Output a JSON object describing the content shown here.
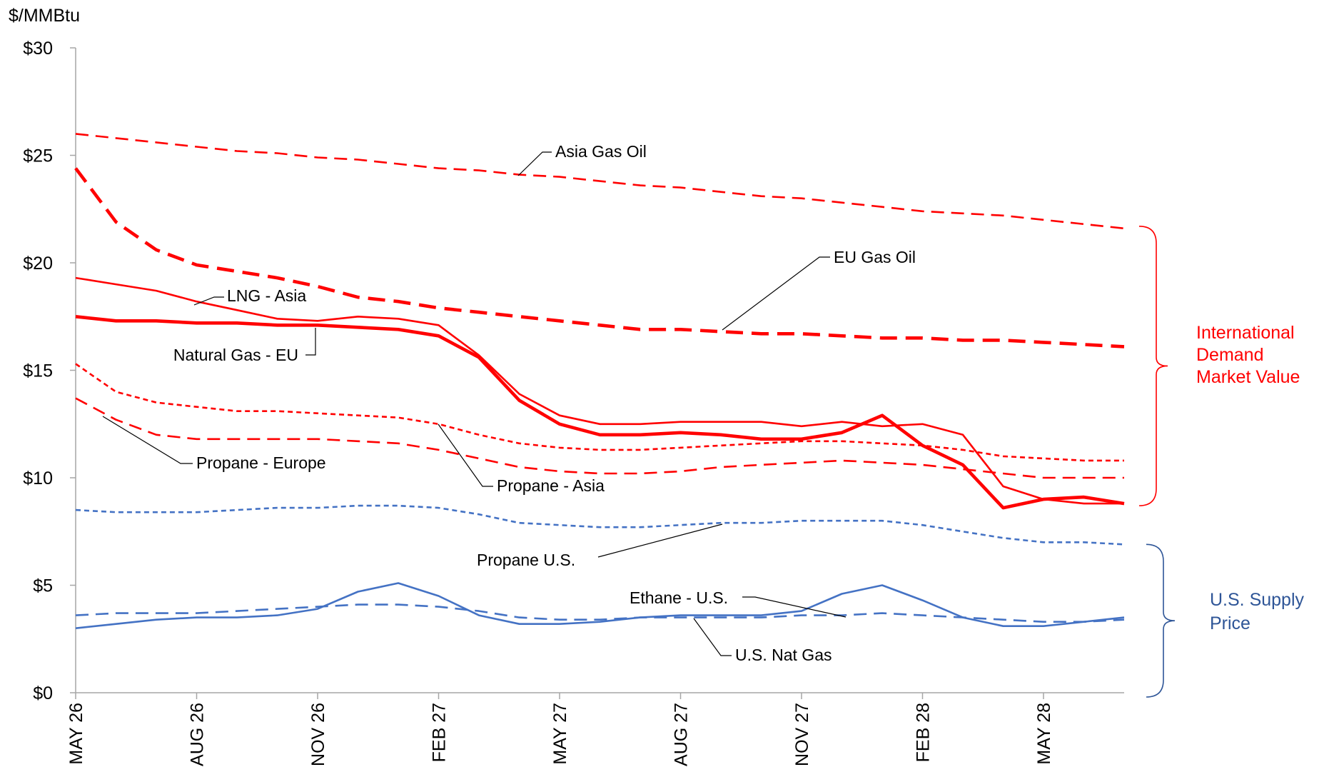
{
  "chart_data": {
    "type": "line",
    "ylabel": "$/MMBtu",
    "ylim": [
      0,
      30
    ],
    "y_ticks": [
      "$0",
      "$5",
      "$10",
      "$15",
      "$20",
      "$25",
      "$30"
    ],
    "y_tick_values": [
      0,
      5,
      10,
      15,
      20,
      25,
      30
    ],
    "x": [
      "MAY 26",
      "JUN 26",
      "JUL 26",
      "AUG 26",
      "SEP 26",
      "OCT 26",
      "NOV 26",
      "DEC 26",
      "JAN 27",
      "FEB 27",
      "MAR 27",
      "APR 27",
      "MAY 27",
      "JUN 27",
      "JUL 27",
      "AUG 27",
      "SEP 27",
      "OCT 27",
      "NOV 27",
      "DEC 27",
      "JAN 28",
      "FEB 28",
      "MAR 28",
      "APR 28",
      "MAY 28",
      "JUN 28",
      "JUL 28"
    ],
    "x_tick_labels": [
      "MAY 26",
      "AUG 26",
      "NOV 26",
      "FEB 27",
      "MAY 27",
      "AUG 27",
      "NOV 27",
      "FEB 28",
      "MAY 28"
    ],
    "x_tick_indices": [
      0,
      3,
      6,
      9,
      12,
      15,
      18,
      21,
      24
    ],
    "grid": false,
    "series": [
      {
        "name": "Asia Gas Oil",
        "color": "#ff0000",
        "style": "dashed",
        "width": "medium",
        "values": [
          26.0,
          25.8,
          25.6,
          25.4,
          25.2,
          25.1,
          24.9,
          24.8,
          24.6,
          24.4,
          24.3,
          24.1,
          24.0,
          23.8,
          23.6,
          23.5,
          23.3,
          23.1,
          23.0,
          22.8,
          22.6,
          22.4,
          22.3,
          22.2,
          22.0,
          21.8,
          21.6
        ]
      },
      {
        "name": "EU Gas Oil",
        "color": "#ff0000",
        "style": "dashed",
        "width": "thick",
        "values": [
          24.4,
          21.9,
          20.6,
          19.9,
          19.6,
          19.3,
          18.9,
          18.4,
          18.2,
          17.9,
          17.7,
          17.5,
          17.3,
          17.1,
          16.9,
          16.9,
          16.8,
          16.7,
          16.7,
          16.6,
          16.5,
          16.5,
          16.4,
          16.4,
          16.3,
          16.2,
          16.1
        ]
      },
      {
        "name": "LNG - Asia",
        "color": "#ff0000",
        "style": "solid",
        "width": "medium",
        "values": [
          19.3,
          19.0,
          18.7,
          18.2,
          17.8,
          17.4,
          17.3,
          17.5,
          17.4,
          17.1,
          15.7,
          13.9,
          12.9,
          12.5,
          12.5,
          12.6,
          12.6,
          12.6,
          12.4,
          12.6,
          12.4,
          12.5,
          12.0,
          9.6,
          9.0,
          8.8,
          8.8
        ]
      },
      {
        "name": "Natural Gas - EU",
        "color": "#ff0000",
        "style": "solid",
        "width": "thick",
        "values": [
          17.5,
          17.3,
          17.3,
          17.2,
          17.2,
          17.1,
          17.1,
          17.0,
          16.9,
          16.6,
          15.6,
          13.6,
          12.5,
          12.0,
          12.0,
          12.1,
          12.0,
          11.8,
          11.8,
          12.1,
          12.9,
          11.5,
          10.6,
          8.6,
          9.0,
          9.1,
          8.8
        ]
      },
      {
        "name": "Propane - Asia",
        "color": "#ff0000",
        "style": "dotted",
        "width": "medium",
        "values": [
          15.3,
          14.0,
          13.5,
          13.3,
          13.1,
          13.1,
          13.0,
          12.9,
          12.8,
          12.5,
          12.0,
          11.6,
          11.4,
          11.3,
          11.3,
          11.4,
          11.5,
          11.6,
          11.7,
          11.7,
          11.6,
          11.5,
          11.3,
          11.0,
          10.9,
          10.8,
          10.8
        ]
      },
      {
        "name": "Propane - Europe",
        "color": "#ff0000",
        "style": "dashed",
        "width": "medium",
        "values": [
          13.7,
          12.7,
          12.0,
          11.8,
          11.8,
          11.8,
          11.8,
          11.7,
          11.6,
          11.3,
          10.9,
          10.5,
          10.3,
          10.2,
          10.2,
          10.3,
          10.5,
          10.6,
          10.7,
          10.8,
          10.7,
          10.6,
          10.4,
          10.2,
          10.0,
          10.0,
          10.0
        ]
      },
      {
        "name": "Propane U.S.",
        "color": "#4472c4",
        "style": "dotted",
        "width": "medium",
        "values": [
          8.5,
          8.4,
          8.4,
          8.4,
          8.5,
          8.6,
          8.6,
          8.7,
          8.7,
          8.6,
          8.3,
          7.9,
          7.8,
          7.7,
          7.7,
          7.8,
          7.9,
          7.9,
          8.0,
          8.0,
          8.0,
          7.8,
          7.5,
          7.2,
          7.0,
          7.0,
          6.9
        ]
      },
      {
        "name": "Ethane - U.S.",
        "color": "#4472c4",
        "style": "solid",
        "width": "medium",
        "values": [
          3.0,
          3.2,
          3.4,
          3.5,
          3.5,
          3.6,
          3.9,
          4.7,
          5.1,
          4.5,
          3.6,
          3.2,
          3.2,
          3.3,
          3.5,
          3.6,
          3.6,
          3.6,
          3.8,
          4.6,
          5.0,
          4.3,
          3.5,
          3.1,
          3.1,
          3.3,
          3.5
        ]
      },
      {
        "name": "U.S. Nat Gas",
        "color": "#4472c4",
        "style": "dashed",
        "width": "medium",
        "values": [
          3.6,
          3.7,
          3.7,
          3.7,
          3.8,
          3.9,
          4.0,
          4.1,
          4.1,
          4.0,
          3.8,
          3.5,
          3.4,
          3.4,
          3.5,
          3.5,
          3.5,
          3.5,
          3.6,
          3.6,
          3.7,
          3.6,
          3.5,
          3.4,
          3.3,
          3.3,
          3.4
        ]
      }
    ],
    "groups": [
      {
        "label": [
          "International",
          "Demand",
          "Market Value"
        ],
        "color": "#ff0000",
        "range": [
          8.7,
          21.7
        ]
      },
      {
        "label": [
          "U.S. Supply",
          "Price"
        ],
        "color": "#2e5597",
        "range": [
          0,
          6.9
        ]
      }
    ]
  }
}
